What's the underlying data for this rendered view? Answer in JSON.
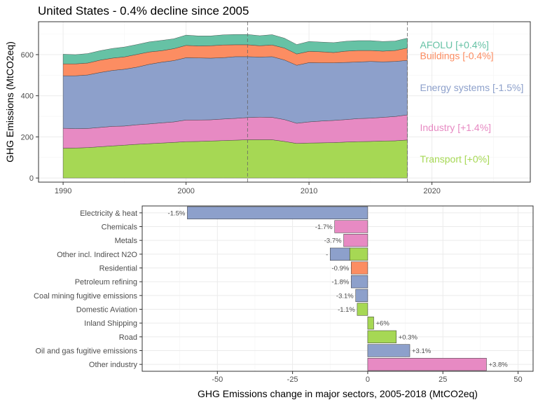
{
  "colors": {
    "transport": "#a6d854",
    "industry": "#e78ac3",
    "energy": "#8da0cb",
    "buildings": "#fc8d62",
    "afolu": "#66c2a5",
    "grid": "#ebebeb",
    "axis_text": "#4d4d4d"
  },
  "chart_data": [
    {
      "type": "area",
      "title": "United States - 0.4% decline since 2005",
      "ylabel": "GHG Emissions (MtCO2eq)",
      "xlabel": "",
      "xlim": [
        1988,
        2028
      ],
      "ylim": [
        -20,
        760
      ],
      "x_ticks": [
        1990,
        2000,
        2010,
        2020
      ],
      "y_ticks": [
        0,
        200,
        400,
        600
      ],
      "reference_lines_x": [
        2005,
        2018
      ],
      "grid": true,
      "x": [
        1990,
        1991,
        1992,
        1993,
        1994,
        1995,
        1996,
        1997,
        1998,
        1999,
        2000,
        2001,
        2002,
        2003,
        2004,
        2005,
        2006,
        2007,
        2008,
        2009,
        2010,
        2011,
        2012,
        2013,
        2014,
        2015,
        2016,
        2017,
        2018
      ],
      "series": [
        {
          "name": "Transport",
          "label": "Transport [+0%]",
          "color_key": "transport",
          "values": [
            145,
            146,
            148,
            152,
            156,
            160,
            164,
            167,
            170,
            173,
            177,
            178,
            180,
            182,
            184,
            186,
            186,
            186,
            178,
            168,
            170,
            171,
            172,
            175,
            177,
            178,
            180,
            181,
            185
          ]
        },
        {
          "name": "Industry",
          "label": "Industry [+1.4%]",
          "color_key": "industry",
          "values": [
            97,
            94,
            93,
            94,
            95,
            93,
            95,
            96,
            98,
            100,
            105,
            104,
            103,
            105,
            106,
            108,
            110,
            109,
            106,
            98,
            103,
            106,
            108,
            109,
            112,
            113,
            115,
            118,
            122
          ]
        },
        {
          "name": "Energy systems",
          "label": "Energy systems [-1.5%]",
          "color_key": "energy",
          "values": [
            255,
            257,
            260,
            267,
            272,
            276,
            280,
            290,
            295,
            298,
            303,
            302,
            300,
            298,
            300,
            296,
            292,
            295,
            290,
            282,
            288,
            283,
            280,
            278,
            275,
            276,
            270,
            268,
            265
          ]
        },
        {
          "name": "Buildings",
          "label": "Buildings [-0.4%]",
          "color_key": "buildings",
          "values": [
            58,
            58,
            58,
            60,
            60,
            60,
            62,
            60,
            56,
            58,
            60,
            58,
            60,
            62,
            58,
            58,
            55,
            57,
            58,
            55,
            55,
            54,
            50,
            55,
            56,
            53,
            52,
            53,
            60
          ]
        },
        {
          "name": "AFOLU",
          "label": "AFOLU [+0.4%]",
          "color_key": "afolu",
          "values": [
            47,
            45,
            46,
            46,
            47,
            48,
            48,
            49,
            50,
            48,
            50,
            49,
            48,
            49,
            50,
            50,
            49,
            50,
            48,
            46,
            48,
            47,
            48,
            48,
            48,
            48,
            47,
            46,
            48
          ]
        }
      ]
    },
    {
      "type": "bar",
      "orientation": "horizontal",
      "xlabel": "GHG Emissions change in major sectors, 2005-2018 (MtCO2eq)",
      "xlim": [
        -75,
        55
      ],
      "x_ticks": [
        -50,
        -25,
        0,
        25,
        50
      ],
      "grid": true,
      "categories": [
        "Electricity & heat",
        "Chemicals",
        "Metals",
        "Other incl. Indirect N2O",
        "Residential",
        "Petroleum refining",
        "Coal mining fugitive emissions",
        "Domestic Aviation",
        "Inland Shipping",
        "Road",
        "Oil and gas fugitive emissions",
        "Other industry"
      ],
      "bars": [
        {
          "category": "Electricity & heat",
          "segments": [
            {
              "value": -60,
              "color_key": "energy"
            }
          ],
          "label": "-1.5%"
        },
        {
          "category": "Chemicals",
          "segments": [
            {
              "value": -11,
              "color_key": "industry"
            }
          ],
          "label": "-1.7%"
        },
        {
          "category": "Metals",
          "segments": [
            {
              "value": -8,
              "color_key": "industry"
            }
          ],
          "label": "-3.7%"
        },
        {
          "category": "Other incl. Indirect N2O",
          "segments": [
            {
              "value": -6,
              "color_key": "transport"
            },
            {
              "value": -6.5,
              "color_key": "energy"
            }
          ],
          "label": "-"
        },
        {
          "category": "Residential",
          "segments": [
            {
              "value": -5.5,
              "color_key": "buildings"
            }
          ],
          "label": "-0.9%"
        },
        {
          "category": "Petroleum refining",
          "segments": [
            {
              "value": -5.5,
              "color_key": "energy"
            }
          ],
          "label": "-1.8%"
        },
        {
          "category": "Coal mining fugitive emissions",
          "segments": [
            {
              "value": -4,
              "color_key": "energy"
            }
          ],
          "label": "-3.1%"
        },
        {
          "category": "Domestic Aviation",
          "segments": [
            {
              "value": -3.5,
              "color_key": "transport"
            }
          ],
          "label": "-1.1%"
        },
        {
          "category": "Inland Shipping",
          "segments": [
            {
              "value": 2,
              "color_key": "transport"
            }
          ],
          "label": "+6%"
        },
        {
          "category": "Road",
          "segments": [
            {
              "value": 9.5,
              "color_key": "transport"
            }
          ],
          "label": "+0.3%"
        },
        {
          "category": "Oil and gas fugitive emissions",
          "segments": [
            {
              "value": 14,
              "color_key": "energy"
            }
          ],
          "label": "+3.1%"
        },
        {
          "category": "Other industry",
          "segments": [
            {
              "value": 39.5,
              "color_key": "industry"
            }
          ],
          "label": "+3.8%"
        }
      ]
    }
  ]
}
